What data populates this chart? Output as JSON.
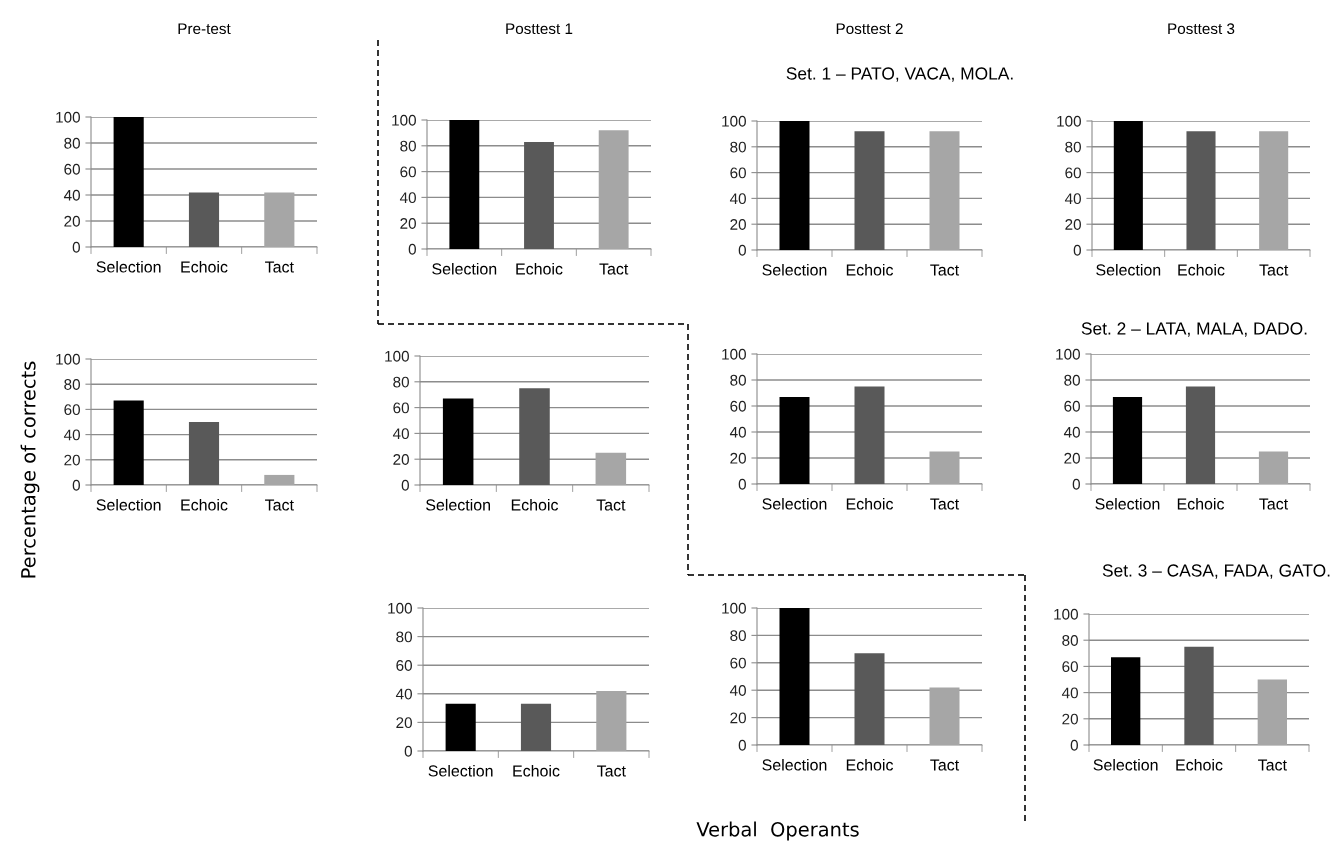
{
  "chart_data": [
    {
      "type": "bar",
      "title": "Pre-test",
      "categories": [
        "Selection",
        "Echoic",
        "Tact"
      ],
      "values": [
        100,
        42,
        42
      ],
      "colors": [
        "#000000",
        "#595959",
        "#a6a6a6"
      ],
      "ylim": [
        0,
        100
      ],
      "yticks": [
        0,
        20,
        40,
        60,
        80,
        100
      ],
      "grid": "y"
    },
    {
      "type": "bar",
      "title": "Posttest 1",
      "categories": [
        "Selection",
        "Echoic",
        "Tact"
      ],
      "values": [
        100,
        83,
        92
      ],
      "colors": [
        "#000000",
        "#595959",
        "#a6a6a6"
      ],
      "ylim": [
        0,
        100
      ],
      "yticks": [
        0,
        20,
        40,
        60,
        80,
        100
      ],
      "grid": "y"
    },
    {
      "type": "bar",
      "title": "Posttest 2",
      "subtitle": "Set. 1 – PATO, VACA, MOLA.",
      "categories": [
        "Selection",
        "Echoic",
        "Tact"
      ],
      "values": [
        100,
        92,
        92
      ],
      "colors": [
        "#000000",
        "#595959",
        "#a6a6a6"
      ],
      "ylim": [
        0,
        100
      ],
      "yticks": [
        0,
        20,
        40,
        60,
        80,
        100
      ],
      "grid": "y"
    },
    {
      "type": "bar",
      "title": "Posttest 3",
      "categories": [
        "Selection",
        "Echoic",
        "Tact"
      ],
      "values": [
        100,
        92,
        92
      ],
      "colors": [
        "#000000",
        "#595959",
        "#a6a6a6"
      ],
      "ylim": [
        0,
        100
      ],
      "yticks": [
        0,
        20,
        40,
        60,
        80,
        100
      ],
      "grid": "y"
    },
    {
      "type": "bar",
      "ylabel": "Percentage of corrects",
      "categories": [
        "Selection",
        "Echoic",
        "Tact"
      ],
      "values": [
        67,
        50,
        8
      ],
      "colors": [
        "#000000",
        "#595959",
        "#a6a6a6"
      ],
      "ylim": [
        0,
        100
      ],
      "yticks": [
        0,
        20,
        40,
        60,
        80,
        100
      ],
      "grid": "y"
    },
    {
      "type": "bar",
      "categories": [
        "Selection",
        "Echoic",
        "Tact"
      ],
      "values": [
        67,
        75,
        25
      ],
      "colors": [
        "#000000",
        "#595959",
        "#a6a6a6"
      ],
      "ylim": [
        0,
        100
      ],
      "yticks": [
        0,
        20,
        40,
        60,
        80,
        100
      ],
      "grid": "y"
    },
    {
      "type": "bar",
      "categories": [
        "Selection",
        "Echoic",
        "Tact"
      ],
      "values": [
        67,
        75,
        25
      ],
      "colors": [
        "#000000",
        "#595959",
        "#a6a6a6"
      ],
      "ylim": [
        0,
        100
      ],
      "yticks": [
        0,
        20,
        40,
        60,
        80,
        100
      ],
      "grid": "y"
    },
    {
      "type": "bar",
      "subtitle": "Set. 2 – LATA, MALA, DADO.",
      "categories": [
        "Selection",
        "Echoic",
        "Tact"
      ],
      "values": [
        67,
        75,
        25
      ],
      "colors": [
        "#000000",
        "#595959",
        "#a6a6a6"
      ],
      "ylim": [
        0,
        100
      ],
      "yticks": [
        0,
        20,
        40,
        60,
        80,
        100
      ],
      "grid": "y"
    },
    {
      "type": "bar",
      "categories": [
        "Selection",
        "Echoic",
        "Tact"
      ],
      "values": [
        33,
        33,
        42
      ],
      "colors": [
        "#000000",
        "#595959",
        "#a6a6a6"
      ],
      "ylim": [
        0,
        100
      ],
      "yticks": [
        0,
        20,
        40,
        60,
        80,
        100
      ],
      "grid": "y"
    },
    {
      "type": "bar",
      "xlabel": "Verbal  Operants",
      "categories": [
        "Selection",
        "Echoic",
        "Tact"
      ],
      "values": [
        100,
        67,
        42
      ],
      "colors": [
        "#000000",
        "#595959",
        "#a6a6a6"
      ],
      "ylim": [
        0,
        100
      ],
      "yticks": [
        0,
        20,
        40,
        60,
        80,
        100
      ],
      "grid": "y"
    },
    {
      "type": "bar",
      "subtitle": "Set. 3 – CASA, FADA, GATO.",
      "categories": [
        "Selection",
        "Echoic",
        "Tact"
      ],
      "values": [
        67,
        75,
        50
      ],
      "colors": [
        "#000000",
        "#595959",
        "#a6a6a6"
      ],
      "ylim": [
        0,
        100
      ],
      "yticks": [
        0,
        20,
        40,
        60,
        80,
        100
      ],
      "grid": "y"
    }
  ]
}
